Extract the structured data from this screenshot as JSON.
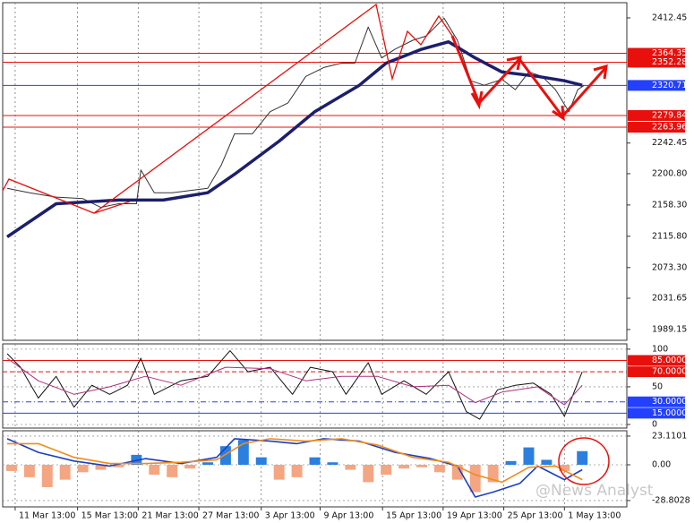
{
  "watermark": "@News Analyst",
  "chart_data": [
    {
      "type": "line",
      "xlim": [
        0,
        350
      ],
      "ylim": [
        1974.5,
        2433.1
      ],
      "grid": "x",
      "yticks": [
        2412.45,
        2242.45,
        {
          "value": 2200.8,
          "label": "2200.80"
        },
        {
          "value": 2158.3,
          "label": "2158.30"
        },
        {
          "value": 2115.8,
          "label": "2115.80"
        },
        {
          "value": 2073.3,
          "label": "2073.30"
        },
        2031.65,
        1989.15
      ],
      "levels": [
        {
          "value": 2364.35,
          "color": "#e8100c"
        },
        {
          "value": 2352.28,
          "color": "#e8100c"
        },
        {
          "value": 2320.71,
          "color": "#2340ff"
        },
        {
          "value": 2279.84,
          "color": "#e8100c"
        },
        {
          "value": 2263.96,
          "color": "#e8100c"
        }
      ],
      "series": [
        {
          "color": "#333333",
          "width": 1,
          "x": [
            2.5,
            15,
            30,
            45,
            55,
            65,
            75,
            77.5,
            85,
            95,
            105,
            115,
            122.5,
            130,
            140,
            150,
            160,
            170,
            180,
            190,
            197.5,
            205,
            212.5,
            220,
            230,
            237.5,
            247.5,
            255,
            262.5,
            270,
            280,
            287.5,
            295,
            302.5,
            310,
            317.5,
            322.5,
            326
          ],
          "values": [
            2181,
            2175,
            2169,
            2167,
            2155,
            2160,
            2160,
            2206,
            2175,
            2175,
            2178,
            2181,
            2212,
            2255,
            2255,
            2285,
            2297,
            2333,
            2345,
            2351,
            2351,
            2400,
            2358,
            2370,
            2382,
            2388,
            2412,
            2382,
            2327,
            2321,
            2329,
            2315,
            2339,
            2333,
            2315,
            2285,
            2315,
            2320.71
          ]
        },
        {
          "color": "#1c1f6b",
          "width": 3.5,
          "x": [
            2.5,
            30,
            65,
            90,
            115,
            130,
            155,
            175,
            200,
            215,
            235,
            250,
            265,
            280,
            300,
            315,
            325
          ],
          "values": [
            2115,
            2160,
            2165,
            2165,
            2175,
            2200,
            2245,
            2285,
            2321,
            2351,
            2370,
            2380,
            2358,
            2339,
            2333,
            2327,
            2321
          ]
        }
      ]
    },
    {
      "type": "line",
      "xlim": [
        0,
        350
      ],
      "ylim": [
        -4.8,
        107
      ],
      "grid": "both",
      "yticks": [
        100,
        50,
        0
      ],
      "levels": [
        {
          "value": 85,
          "label": "85.0000",
          "color": "#e8100c",
          "style": "solid"
        },
        {
          "value": 70,
          "label": "70.0000",
          "color": "#e8100c",
          "style": "dashed"
        },
        {
          "value": 30,
          "label": "30.0000",
          "color": "#2340ff",
          "style": "dashdot"
        },
        {
          "value": 15,
          "label": "15.0000",
          "color": "#2340ff",
          "style": "solid"
        }
      ],
      "series": [
        {
          "color": "#111111",
          "width": 1,
          "x": [
            2.5,
            10,
            20,
            30,
            40,
            50,
            60,
            70,
            77.5,
            85,
            100,
            115,
            127.5,
            137.5,
            150,
            162.5,
            172.5,
            185,
            192.5,
            205,
            212.5,
            225,
            237.5,
            250,
            260,
            267.5,
            277.5,
            287.5,
            297.5,
            307.5,
            315,
            325
          ],
          "values": [
            94,
            76,
            35,
            64,
            23,
            52,
            40,
            52,
            88,
            40,
            58,
            64,
            98,
            70,
            76,
            40,
            76,
            70,
            40,
            82,
            40,
            58,
            40,
            70,
            17,
            7,
            46,
            52,
            55,
            40,
            11,
            70
          ]
        },
        {
          "color": "#b0307a",
          "width": 1,
          "x": [
            2.5,
            20,
            40,
            60,
            80,
            100,
            125,
            150,
            170,
            190,
            210,
            230,
            250,
            265,
            280,
            300,
            315,
            325
          ],
          "values": [
            88,
            58,
            40,
            50,
            64,
            52,
            76,
            74,
            58,
            64,
            64,
            50,
            52,
            29,
            43,
            50,
            26,
            52
          ]
        }
      ]
    },
    {
      "type": "macd",
      "xlim": [
        0,
        350
      ],
      "ylim": [
        -33.9,
        27.4
      ],
      "grid": "both",
      "yticks": [
        23.1101,
        {
          "value": 0,
          "label": "0.00"
        },
        -28.8028
      ],
      "xticks": [
        {
          "value": 7,
          "label": "11 Mar 13:00"
        },
        {
          "value": 42,
          "label": "15 Mar 13:00"
        },
        {
          "value": 76,
          "label": "21 Mar 13:00"
        },
        {
          "value": 110,
          "label": "27 Mar 13:00"
        },
        {
          "value": 145,
          "label": "3 Apr 13:00"
        },
        {
          "value": 178,
          "label": "9 Apr 13:00"
        },
        {
          "value": 213,
          "label": "15 Apr 13:00"
        },
        {
          "value": 247,
          "label": "19 Apr 13:00"
        },
        {
          "value": 281,
          "label": "25 Apr 13:00"
        },
        {
          "value": 315,
          "label": "1 May 13:00"
        }
      ],
      "histogram": {
        "pos_color": "#2b7fde",
        "neg_color": "#f4a582",
        "x": [
          5,
          15,
          25,
          35,
          45,
          55,
          65,
          75,
          85,
          95,
          105,
          115,
          125,
          135,
          145,
          155,
          165,
          175,
          185,
          195,
          205,
          215,
          225,
          235,
          245,
          255,
          265,
          275,
          285,
          295,
          305,
          315,
          325
        ],
        "values": [
          -5,
          -10,
          -18,
          -12,
          -6,
          -4,
          -2,
          8,
          -8,
          -10,
          -3,
          2,
          15,
          20,
          6,
          -12,
          -10,
          6,
          2,
          -4,
          -14,
          -8,
          -3,
          -2,
          -6,
          -12,
          -22,
          -14,
          3,
          14,
          4,
          -5,
          11
        ]
      },
      "series": [
        {
          "color": "#1a3fc4",
          "width": 1.6,
          "x": [
            2.5,
            20,
            40,
            60,
            80,
            100,
            120,
            130,
            150,
            165,
            180,
            200,
            220,
            240,
            255,
            265,
            275,
            290,
            300,
            315,
            325
          ],
          "values": [
            21,
            10,
            3,
            -1,
            5,
            1,
            6,
            21,
            19,
            17,
            21,
            19,
            10,
            5,
            -1,
            -26,
            -22,
            -15,
            -1,
            -12,
            -4
          ]
        },
        {
          "color": "#f08c1a",
          "width": 1.6,
          "x": [
            2.5,
            20,
            40,
            60,
            80,
            100,
            120,
            135,
            150,
            170,
            190,
            210,
            230,
            250,
            265,
            280,
            295,
            310,
            325
          ],
          "values": [
            17,
            17,
            6,
            1,
            1,
            2,
            4,
            17,
            21,
            19,
            21,
            16,
            6,
            2,
            -8,
            -14,
            -2,
            -1,
            -12
          ]
        }
      ]
    }
  ]
}
